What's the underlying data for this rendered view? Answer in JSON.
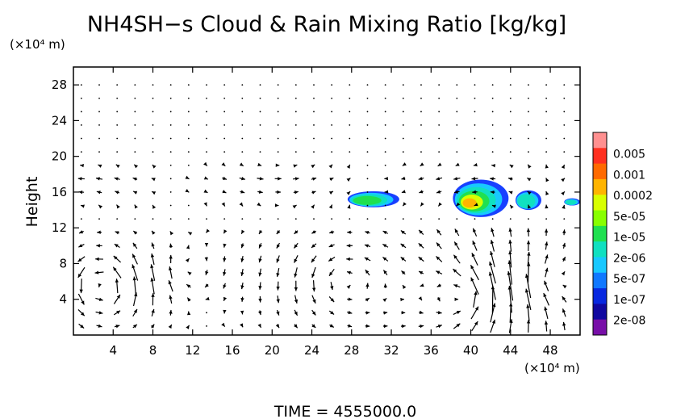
{
  "chart_data": {
    "type": "contour+vector",
    "title": "NH4SH−s Cloud & Rain Mixing Ratio [kg/kg]",
    "xunit": "(×10⁴ m)",
    "yunit": "(×10⁴ m)",
    "ylabel": "Height",
    "footer": "TIME  =  4555000.0",
    "xlim": [
      0,
      51
    ],
    "ylim": [
      0,
      30
    ],
    "xticks": [
      4,
      8,
      12,
      16,
      20,
      24,
      28,
      32,
      36,
      40,
      44,
      48
    ],
    "yticks": [
      4,
      8,
      12,
      16,
      20,
      24,
      28
    ],
    "colorbar": {
      "labels": [
        "0.005",
        "0.001",
        "0.0002",
        "5e-05",
        "1e-05",
        "2e-06",
        "5e-07",
        "1e-07",
        "2e-08"
      ],
      "colors": [
        "#ff9090",
        "#ff3020",
        "#ff6a00",
        "#ffb400",
        "#d8ff00",
        "#88ff00",
        "#20e050",
        "#10e0c0",
        "#18c8ff",
        "#1078ff",
        "#0828e0",
        "#1008a0",
        "#780fa8"
      ]
    },
    "cloud_regions": [
      {
        "cx": 30.2,
        "cy": 15.2,
        "rx": 2.6,
        "ry": 0.9
      },
      {
        "cx": 41.0,
        "cy": 15.3,
        "rx": 2.8,
        "ry": 2.1
      },
      {
        "cx": 45.8,
        "cy": 15.1,
        "rx": 1.3,
        "ry": 1.1
      },
      {
        "cx": 50.2,
        "cy": 14.9,
        "rx": 0.8,
        "ry": 0.4
      }
    ],
    "vortices": [
      {
        "x": 3,
        "y": 5.5,
        "s": 1
      },
      {
        "x": 11,
        "y": 7,
        "s": -0.5
      },
      {
        "x": 27,
        "y": 6,
        "s": 0.6
      },
      {
        "x": 40,
        "y": 4.5,
        "s": 1
      },
      {
        "x": 47,
        "y": 6,
        "s": -0.7
      }
    ]
  }
}
